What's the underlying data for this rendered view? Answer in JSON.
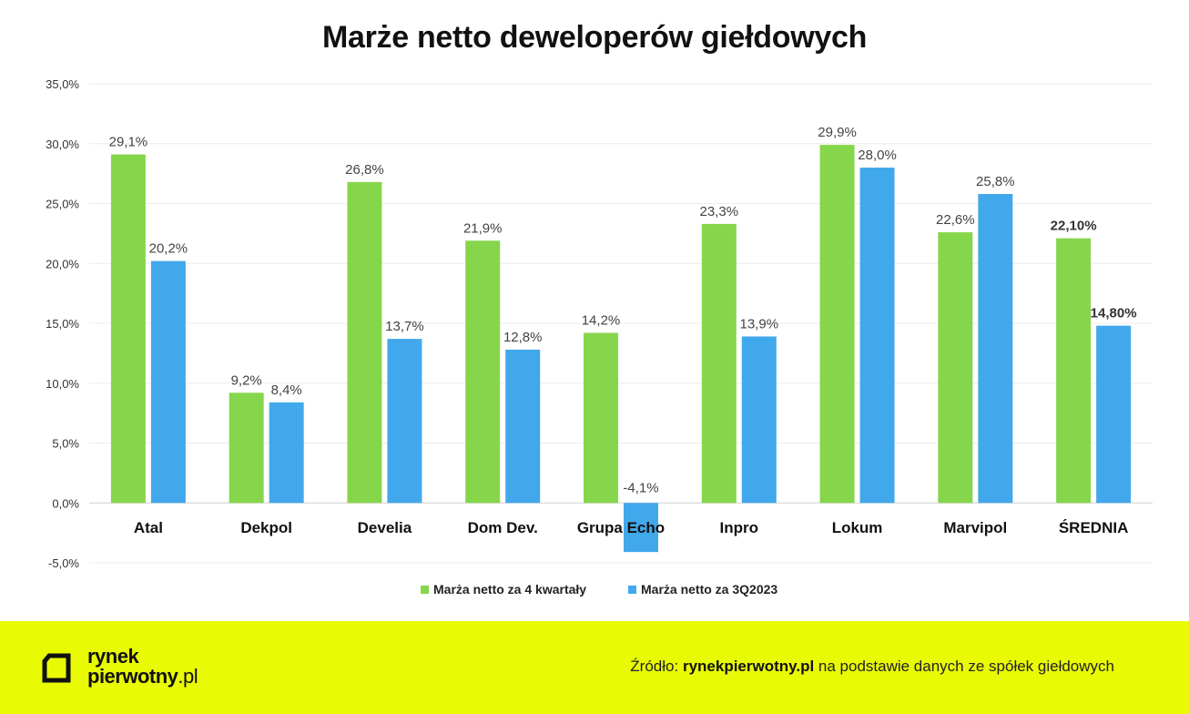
{
  "title": "Marże netto deweloperów giełdowych",
  "chart_data": {
    "type": "bar",
    "title": "Marże netto deweloperów giełdowych",
    "xlabel": "",
    "ylabel": "",
    "categories": [
      "Atal",
      "Dekpol",
      "Develia",
      "Dom Dev.",
      "Grupa Echo",
      "Inpro",
      "Lokum",
      "Marvipol",
      "ŚREDNIA"
    ],
    "series": [
      {
        "name": "Marża netto za 4 kwartały",
        "color": "#86d64c",
        "values": [
          29.1,
          9.2,
          26.8,
          21.9,
          14.2,
          23.3,
          29.9,
          22.6,
          22.1
        ],
        "labels": [
          "29,1%",
          "9,2%",
          "26,8%",
          "21,9%",
          "14,2%",
          "23,3%",
          "29,9%",
          "22,6%",
          "22,10%"
        ]
      },
      {
        "name": "Marża netto za 3Q2023",
        "color": "#42a8ec",
        "values": [
          20.2,
          8.4,
          13.7,
          12.8,
          -4.1,
          13.9,
          28.0,
          25.8,
          14.8
        ],
        "labels": [
          "20,2%",
          "8,4%",
          "13,7%",
          "12,8%",
          "-4,1%",
          "13,9%",
          "28,0%",
          "25,8%",
          "14,80%"
        ]
      }
    ],
    "bold_label_categories": [
      "ŚREDNIA"
    ],
    "ylim": [
      -5,
      35
    ],
    "yticks": [
      -5,
      0,
      5,
      10,
      15,
      20,
      25,
      30,
      35
    ],
    "ytick_labels": [
      "-5,0%",
      "0,0%",
      "5,0%",
      "10,0%",
      "15,0%",
      "20,0%",
      "25,0%",
      "30,0%",
      "35,0%"
    ],
    "grid": true,
    "legend_position": "bottom"
  },
  "footer": {
    "logo_line1": "rynek",
    "logo_line2_main": "pierwotny",
    "logo_line2_suffix": ".pl",
    "source_prefix": "Źródło:",
    "source_site": "rynekpierwotny.pl",
    "source_suffix": "na podstawie danych ze spółek giełdowych",
    "background_color": "#e9fb04"
  }
}
